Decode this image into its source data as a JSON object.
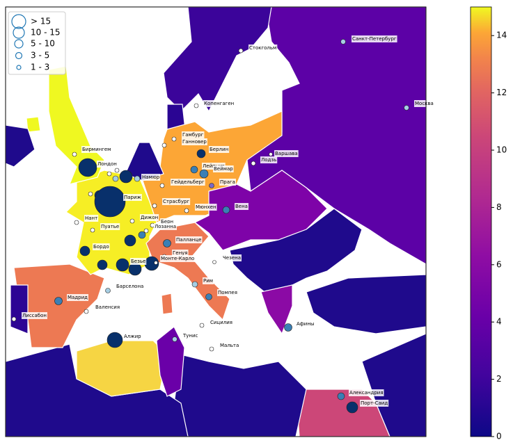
{
  "legend": {
    "labels": [
      "> 15",
      "10 - 15",
      "5 - 10",
      "3 - 5",
      "1 - 3"
    ]
  },
  "colorbar": {
    "lim": [
      0,
      15
    ],
    "ticks": [
      0,
      2,
      4,
      6,
      8,
      10,
      12,
      14
    ]
  },
  "cities": [
    "Стокгольм",
    "Санкт-Петербург",
    "Москва",
    "Копенгаген",
    "Гамбург",
    "Ганновер",
    "Берлин",
    "Варшава",
    "Лодзь",
    "Бирмингем",
    "Лондон",
    "Лейпциг",
    "Веймар",
    "Прага",
    "Гейдельберг",
    "Мюнхен",
    "Вена",
    "Страсбург",
    "Париж",
    "Нант",
    "Пуатье",
    "Дижон",
    "Берн",
    "Лозанна",
    "Бордо",
    "Палланце",
    "Генуя",
    "Монте-Карло",
    "Чезена",
    "Безье",
    "Рим",
    "Помпея",
    "Барселона",
    "Мадрид",
    "Валенсия",
    "Лиссабон",
    "Сицилия",
    "Тунис",
    "Мальта",
    "Алжир",
    "Афины",
    "Александрия",
    "Порт-Саид",
    "Намюр"
  ]
}
